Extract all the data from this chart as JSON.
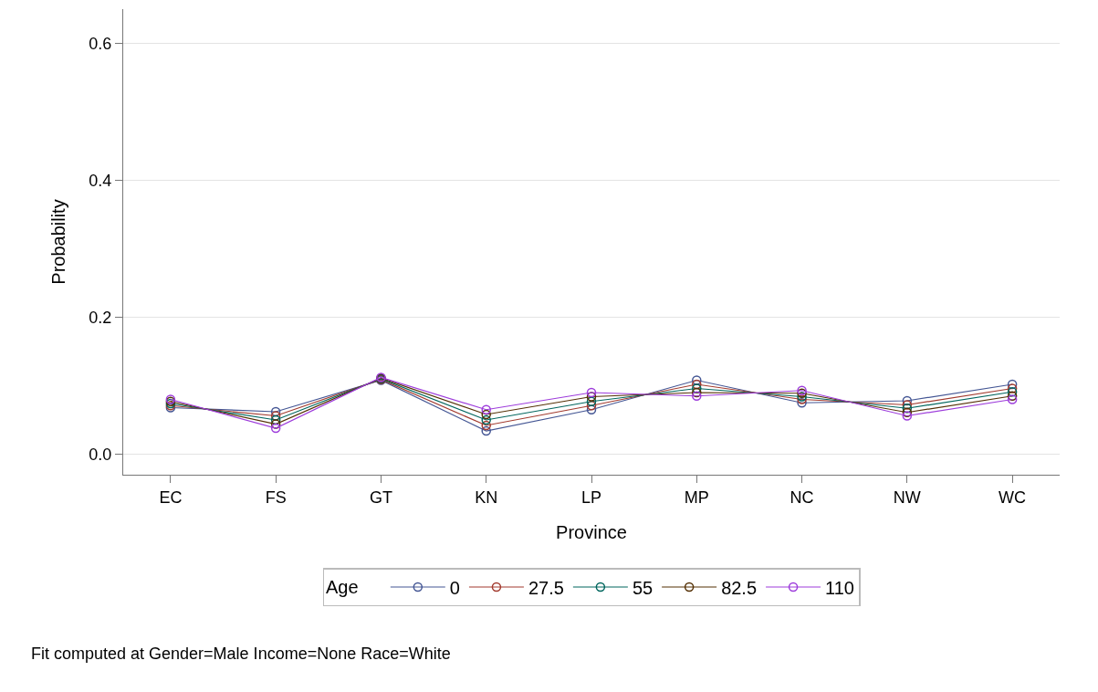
{
  "chart_data": {
    "type": "line",
    "xlabel": "Province",
    "ylabel": "Probability",
    "legend_title": "Age",
    "categories": [
      "EC",
      "FS",
      "GT",
      "KN",
      "LP",
      "MP",
      "NC",
      "NW",
      "WC"
    ],
    "series": [
      {
        "name": "0",
        "color": "#445694",
        "values": [
          0.068,
          0.062,
          0.108,
          0.034,
          0.065,
          0.108,
          0.075,
          0.078,
          0.102
        ]
      },
      {
        "name": "27.5",
        "color": "#a23a2e",
        "values": [
          0.071,
          0.056,
          0.109,
          0.042,
          0.071,
          0.102,
          0.08,
          0.072,
          0.096
        ]
      },
      {
        "name": "55",
        "color": "#01665e",
        "values": [
          0.074,
          0.05,
          0.11,
          0.05,
          0.077,
          0.096,
          0.084,
          0.067,
          0.091
        ]
      },
      {
        "name": "82.5",
        "color": "#543005",
        "values": [
          0.077,
          0.044,
          0.111,
          0.058,
          0.084,
          0.09,
          0.089,
          0.061,
          0.085
        ]
      },
      {
        "name": "110",
        "color": "#9d3cdb",
        "values": [
          0.08,
          0.038,
          0.112,
          0.065,
          0.09,
          0.085,
          0.093,
          0.056,
          0.08
        ]
      }
    ],
    "ylim": [
      -0.03,
      0.65
    ],
    "yticks": [
      {
        "value": 0,
        "label": "0.0"
      },
      0.2,
      0.4,
      0.6
    ],
    "grid": "y",
    "legend": "bottom",
    "marker": "circle",
    "line_style": "solid",
    "annotations": [
      "Fit computed at Gender=Male Income=None Race=White"
    ]
  }
}
